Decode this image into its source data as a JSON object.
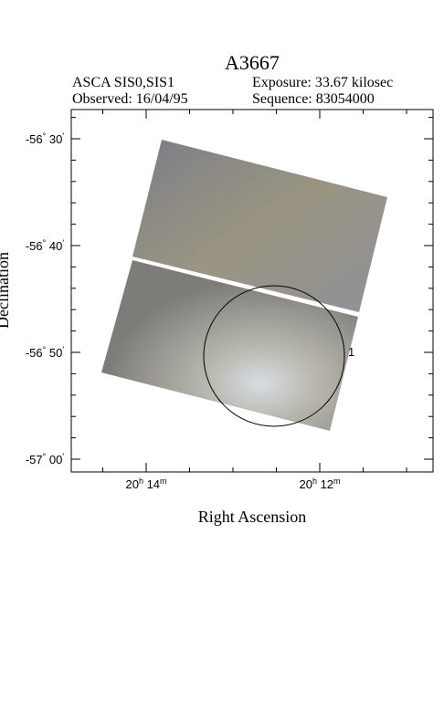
{
  "header": {
    "title": "A3667",
    "instrument": "ASCA SIS0,SIS1",
    "exposure": "Exposure: 33.67 kilosec",
    "observed": "Observed: 16/04/95",
    "sequence": "Sequence: 83054000"
  },
  "plot": {
    "x_label": "Right Ascension",
    "y_label": "Declination",
    "y_tick_labels": [
      [
        "-56",
        "°",
        " 30",
        "′"
      ],
      [
        "-56",
        "°",
        " 40",
        "′"
      ],
      [
        "-56",
        "°",
        " 50",
        "′"
      ],
      [
        "-57",
        "°",
        " 00",
        "′"
      ]
    ],
    "x_tick_labels": [
      [
        "20",
        "h",
        " 14",
        "m"
      ],
      [
        "20",
        "h",
        " 12",
        "m"
      ]
    ],
    "region_label": "1"
  }
}
